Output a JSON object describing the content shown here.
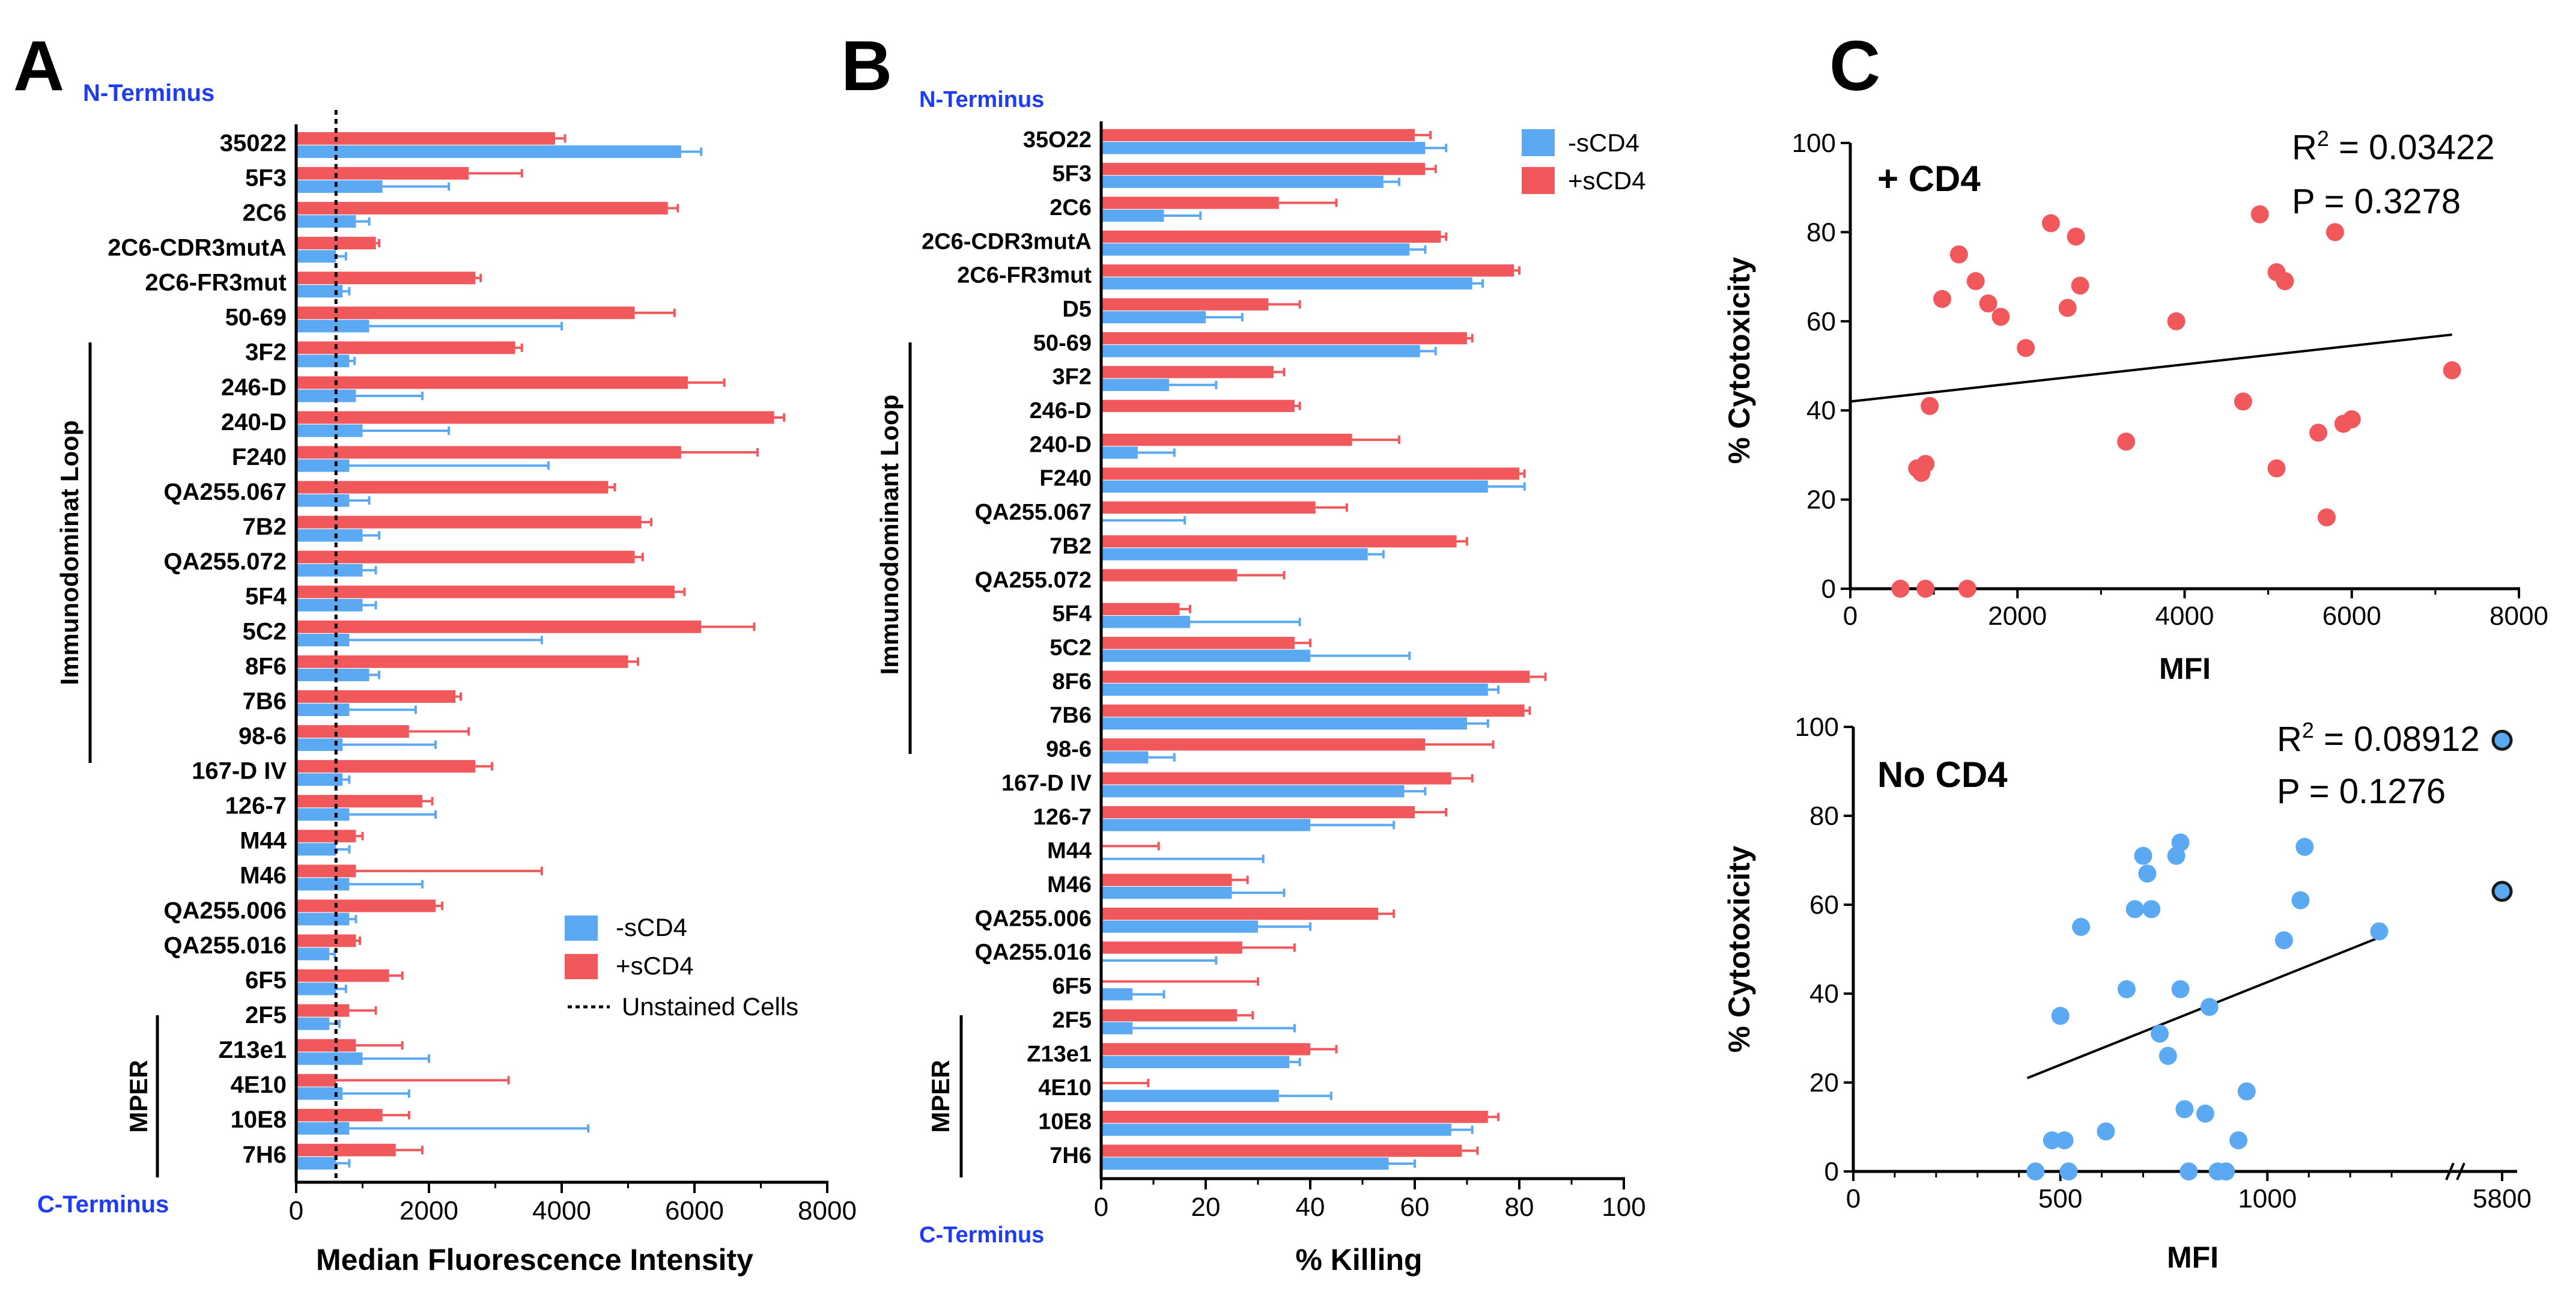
{
  "panels": {
    "a": "A",
    "b": "B",
    "c": "C"
  },
  "colors": {
    "minus": "#5aa9f2",
    "plus": "#f0585c",
    "axis": "#000000",
    "blue_text": "#1e3cf0"
  },
  "chart_data": [
    {
      "id": "A",
      "type": "bar",
      "orientation": "horizontal",
      "top_label": "N-Terminus",
      "bottom_label": "C-Terminus",
      "xlabel": "Median Fluorescence Intensity",
      "xlim": [
        0,
        8000
      ],
      "xticks": [
        0,
        2000,
        4000,
        6000,
        8000
      ],
      "reference_line": {
        "value": 600,
        "label": "Unstained Cells"
      },
      "legend": {
        "position": "bottom-right",
        "entries": [
          "-sCD4",
          "+sCD4",
          "Unstained Cells"
        ]
      },
      "groups": [
        {
          "label": "Immunodominat Loop",
          "from": "3F2",
          "to": "98-6"
        },
        {
          "label": "MPER",
          "from": "Z13e1",
          "to": "7H6"
        }
      ],
      "categories": [
        "35022",
        "5F3",
        "2C6",
        "2C6-CDR3mutA",
        "2C6-FR3mut",
        "50-69",
        "3F2",
        "246-D",
        "240-D",
        "F240",
        "QA255.067",
        "7B2",
        "QA255.072",
        "5F4",
        "5C2",
        "8F6",
        "7B6",
        "98-6",
        "167-D IV",
        "126-7",
        "M44",
        "M46",
        "QA255.006",
        "QA255.016",
        "6F5",
        "2F5",
        "Z13e1",
        "4E10",
        "10E8",
        "7H6"
      ],
      "series": [
        {
          "name": "+sCD4",
          "values": [
            3900,
            2600,
            5600,
            1200,
            2700,
            5100,
            3300,
            5900,
            7200,
            5800,
            4700,
            5200,
            5100,
            5700,
            6100,
            5000,
            2400,
            1700,
            2700,
            1900,
            900,
            900,
            2100,
            900,
            1400,
            800,
            900,
            600,
            1300,
            1500
          ],
          "errors": [
            150,
            800,
            150,
            50,
            80,
            600,
            100,
            550,
            150,
            1150,
            100,
            150,
            120,
            150,
            800,
            150,
            80,
            900,
            250,
            150,
            100,
            2800,
            100,
            60,
            200,
            400,
            700,
            2600,
            400,
            400
          ]
        },
        {
          "name": "-sCD4",
          "values": [
            5800,
            1300,
            900,
            600,
            700,
            1100,
            800,
            900,
            1000,
            800,
            800,
            1000,
            1000,
            1000,
            800,
            1100,
            800,
            700,
            700,
            800,
            600,
            800,
            800,
            500,
            600,
            500,
            1000,
            700,
            800,
            600
          ],
          "errors": [
            300,
            1000,
            200,
            150,
            100,
            2900,
            80,
            1000,
            1300,
            3000,
            300,
            250,
            200,
            200,
            2900,
            150,
            1000,
            1400,
            100,
            1300,
            200,
            1100,
            100,
            80,
            150,
            150,
            1000,
            1000,
            3600,
            200
          ]
        }
      ]
    },
    {
      "id": "B",
      "type": "bar",
      "orientation": "horizontal",
      "top_label": "N-Terminus",
      "bottom_label": "C-Terminus",
      "xlabel": "% Killing",
      "xlim": [
        0,
        100
      ],
      "xticks": [
        0,
        20,
        40,
        60,
        80,
        100
      ],
      "legend": {
        "position": "top-right",
        "entries": [
          "-sCD4",
          "+sCD4"
        ]
      },
      "groups": [
        {
          "label": "Immunodominant Loop",
          "from": "50-69",
          "to": "98-6"
        },
        {
          "label": "MPER",
          "from": "Z13e1",
          "to": "7H6"
        }
      ],
      "categories": [
        "35O22",
        "5F3",
        "2C6",
        "2C6-CDR3mutA",
        "2C6-FR3mut",
        "D5",
        "50-69",
        "3F2",
        "246-D",
        "240-D",
        "F240",
        "QA255.067",
        "7B2",
        "QA255.072",
        "5F4",
        "5C2",
        "8F6",
        "7B6",
        "98-6",
        "167-D IV",
        "126-7",
        "M44",
        "M46",
        "QA255.006",
        "QA255.016",
        "6F5",
        "2F5",
        "Z13e1",
        "4E10",
        "10E8",
        "7H6"
      ],
      "series": [
        {
          "name": "+sCD4",
          "values": [
            60,
            62,
            34,
            65,
            79,
            32,
            70,
            33,
            37,
            48,
            80,
            41,
            68,
            26,
            15,
            37,
            82,
            81,
            62,
            67,
            60,
            0,
            25,
            53,
            27,
            0,
            26,
            40,
            0,
            74,
            69
          ],
          "errors": [
            3,
            2,
            11,
            1,
            1,
            6,
            1,
            2,
            1,
            9,
            1,
            6,
            2,
            9,
            2,
            3,
            3,
            1,
            13,
            4,
            6,
            11,
            3,
            3,
            10,
            30,
            3,
            5,
            9,
            2,
            3
          ]
        },
        {
          "name": "-sCD4",
          "values": [
            62,
            54,
            12,
            59,
            71,
            20,
            61,
            13,
            0,
            7,
            74,
            0,
            51,
            0,
            17,
            40,
            74,
            70,
            9,
            58,
            40,
            0,
            25,
            30,
            0,
            6,
            6,
            36,
            34,
            67,
            55
          ],
          "errors": [
            4,
            3,
            7,
            3,
            2,
            7,
            3,
            9,
            0,
            7,
            7,
            16,
            3,
            0,
            21,
            19,
            2,
            4,
            5,
            4,
            16,
            31,
            10,
            10,
            22,
            6,
            31,
            2,
            10,
            4,
            5
          ]
        }
      ]
    },
    {
      "id": "C-top",
      "type": "scatter",
      "title": "+ CD4",
      "xlabel": "MFI",
      "ylabel": "% Cytotoxicity",
      "xlim": [
        0,
        8000
      ],
      "ylim": [
        0,
        100
      ],
      "xticks": [
        0,
        2000,
        4000,
        6000,
        8000
      ],
      "yticks": [
        0,
        20,
        40,
        60,
        80,
        100
      ],
      "annotation": {
        "r2_prefix": "R",
        "r2_sup": "2",
        "r2_value": " = 0.03422",
        "p": "P = 0.3278"
      },
      "fit": {
        "x": [
          0,
          7200
        ],
        "y": [
          42,
          57
        ]
      },
      "points": [
        [
          600,
          0
        ],
        [
          900,
          0
        ],
        [
          1400,
          0
        ],
        [
          800,
          27
        ],
        [
          850,
          26
        ],
        [
          900,
          28
        ],
        [
          950,
          41
        ],
        [
          1100,
          65
        ],
        [
          1300,
          75
        ],
        [
          1500,
          69
        ],
        [
          1650,
          64
        ],
        [
          1800,
          61
        ],
        [
          2100,
          54
        ],
        [
          2400,
          82
        ],
        [
          2600,
          63
        ],
        [
          2700,
          79
        ],
        [
          2750,
          68
        ],
        [
          3300,
          33
        ],
        [
          3900,
          60
        ],
        [
          4700,
          42
        ],
        [
          4900,
          84
        ],
        [
          5100,
          71
        ],
        [
          5200,
          69
        ],
        [
          5100,
          27
        ],
        [
          5600,
          35
        ],
        [
          5700,
          16
        ],
        [
          5800,
          80
        ],
        [
          5900,
          37
        ],
        [
          6000,
          38
        ],
        [
          7200,
          49
        ]
      ]
    },
    {
      "id": "C-bottom",
      "type": "scatter",
      "title": "No  CD4",
      "xlabel": "MFI",
      "ylabel": "% Cytotoxicity",
      "xlim": [
        0,
        1400
      ],
      "ylim": [
        0,
        100
      ],
      "xticks": [
        0,
        500,
        1000
      ],
      "outlier_tick": 5800,
      "yticks": [
        0,
        20,
        40,
        60,
        80,
        100
      ],
      "annotation": {
        "r2_prefix": "R",
        "r2_sup": "2",
        "r2_value": " = 0.08912",
        "p": "P = 0.1276"
      },
      "fit": {
        "x": [
          420,
          1280
        ],
        "y": [
          21,
          53
        ]
      },
      "points": [
        [
          440,
          0
        ],
        [
          480,
          7
        ],
        [
          500,
          35
        ],
        [
          510,
          7
        ],
        [
          520,
          0
        ],
        [
          550,
          55
        ],
        [
          610,
          9
        ],
        [
          660,
          41
        ],
        [
          680,
          59
        ],
        [
          700,
          71
        ],
        [
          710,
          67
        ],
        [
          720,
          59
        ],
        [
          740,
          31
        ],
        [
          760,
          26
        ],
        [
          780,
          71
        ],
        [
          790,
          74
        ],
        [
          790,
          41
        ],
        [
          800,
          14
        ],
        [
          810,
          0
        ],
        [
          850,
          13
        ],
        [
          860,
          37
        ],
        [
          880,
          0
        ],
        [
          900,
          0
        ],
        [
          930,
          7
        ],
        [
          950,
          18
        ],
        [
          1040,
          52
        ],
        [
          1080,
          61
        ],
        [
          1090,
          73
        ],
        [
          1270,
          54
        ]
      ],
      "outliers": [
        [
          5800,
          97
        ],
        [
          5800,
          63
        ]
      ]
    }
  ]
}
